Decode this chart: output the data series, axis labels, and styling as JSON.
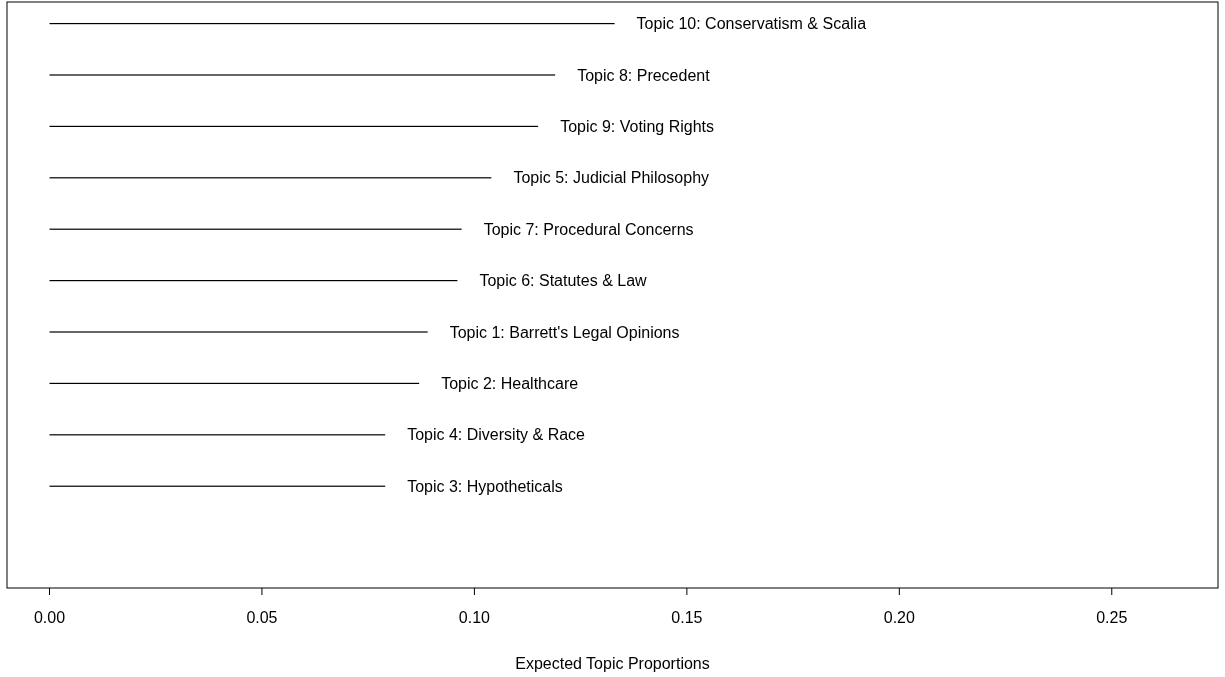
{
  "chart_data": {
    "type": "bar",
    "orientation": "horizontal",
    "xlabel": "Expected Topic Proportions",
    "categories": [
      "Topic 10: Conservatism & Scalia",
      "Topic 8: Precedent",
      "Topic 9: Voting Rights",
      "Topic 5: Judicial Philosophy",
      "Topic 7: Procedural Concerns",
      "Topic 6: Statutes & Law",
      "Topic 1: Barrett's Legal Opinions",
      "Topic 2: Healthcare",
      "Topic 4: Diversity & Race",
      "Topic 3: Hypotheticals"
    ],
    "values": [
      0.133,
      0.119,
      0.115,
      0.104,
      0.097,
      0.096,
      0.089,
      0.087,
      0.079,
      0.079
    ],
    "color": "#000000",
    "xlim": [
      -0.01,
      0.275
    ],
    "xticks": [
      {
        "value": 0,
        "label": "0.00"
      },
      {
        "value": 0.05,
        "label": "0.05"
      },
      {
        "value": 0.1,
        "label": "0.10"
      },
      {
        "value": 0.15,
        "label": "0.15"
      },
      {
        "value": 0.2,
        "label": "0.20"
      },
      {
        "value": 0.25,
        "label": "0.25"
      }
    ],
    "tick_labels": "x"
  }
}
